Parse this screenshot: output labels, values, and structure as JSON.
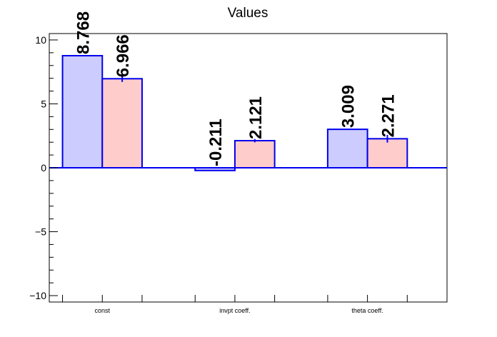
{
  "chart_data": {
    "type": "bar",
    "title": "Values",
    "xlabel": "",
    "ylabel": "",
    "categories": [
      "const",
      "invpt coeff.",
      "theta coeff."
    ],
    "series": [
      {
        "values": [
          8.768,
          -0.211,
          3.009
        ],
        "errors": [
          0,
          0,
          0
        ],
        "color": "#ccccff"
      },
      {
        "values": [
          6.966,
          2.121,
          2.271
        ],
        "errors": [
          0.25,
          0.13,
          0.3
        ],
        "color": "#ffcccc"
      }
    ],
    "data_labels": [
      [
        "8.768",
        "-0.211",
        "3.009"
      ],
      [
        "6.966",
        "2.121",
        "2.271"
      ]
    ],
    "ylim": [
      -10.5,
      10.5
    ],
    "yticks": [
      -10,
      -5,
      0,
      5,
      10
    ],
    "ytick_labels": [
      "−10",
      "−5",
      "0",
      "5",
      "10"
    ],
    "edge_color": "#0000ee",
    "grid": false,
    "legend": "none"
  }
}
